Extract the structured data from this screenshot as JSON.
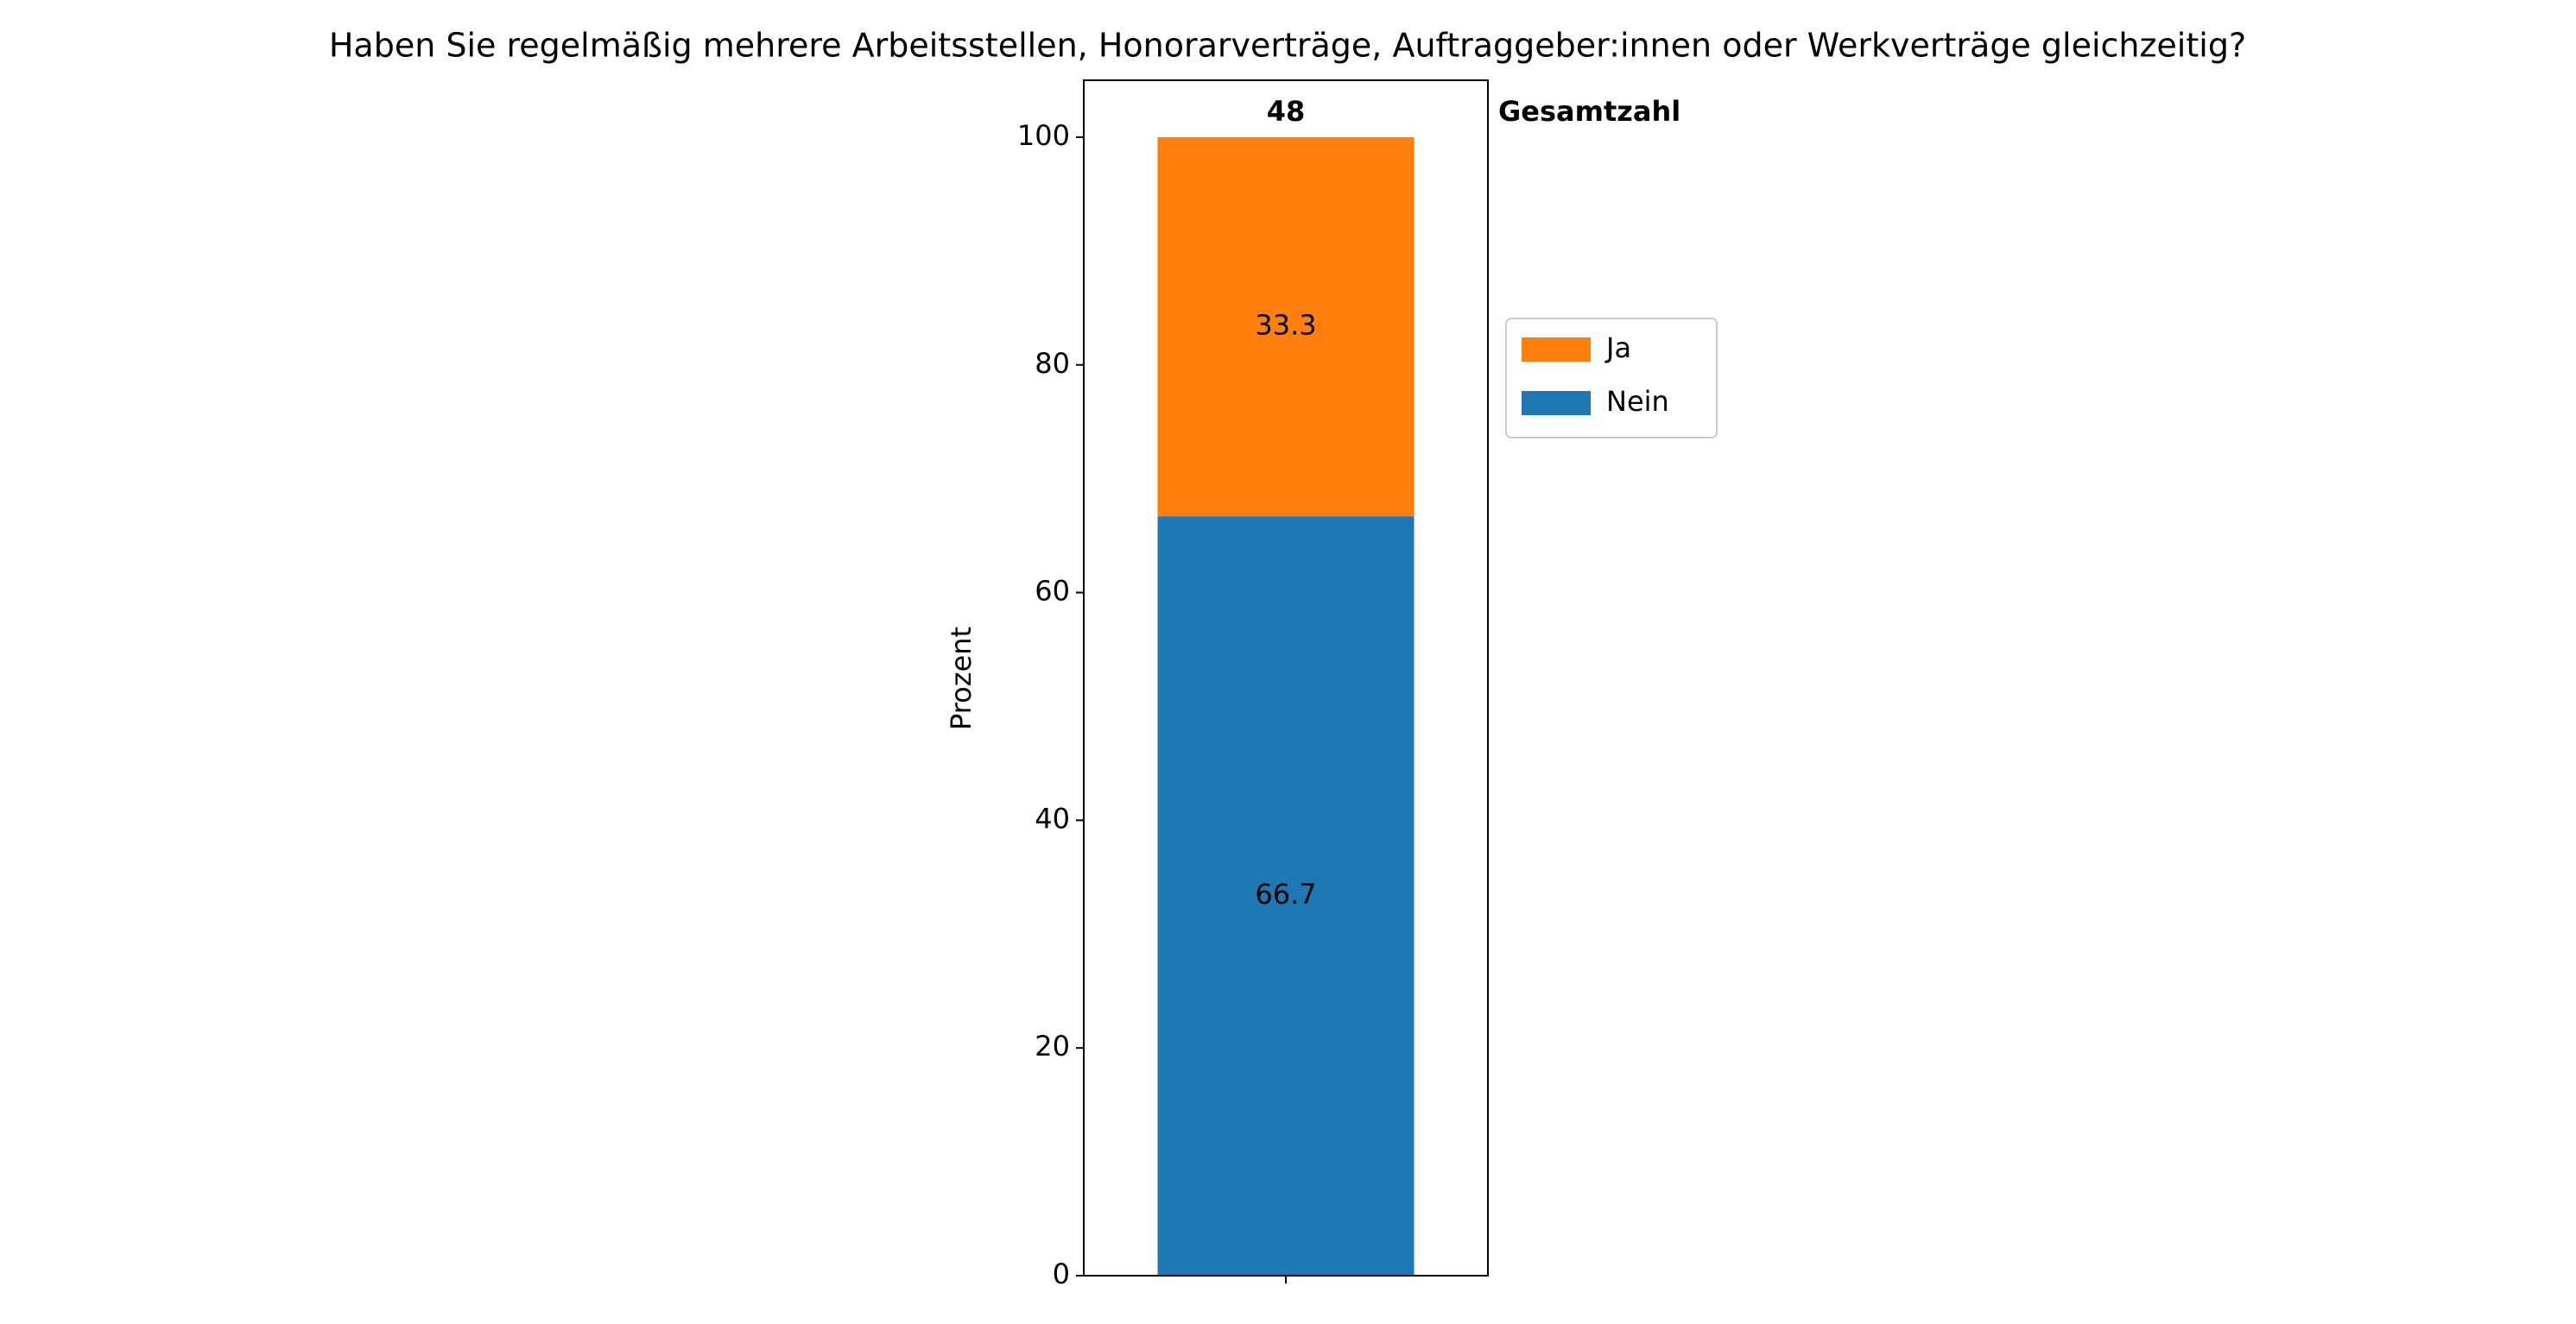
{
  "chart_data": {
    "type": "stacked_bar",
    "title": "Haben Sie regelmäßig mehrere Arbeitsstellen, Honorarverträge, Auftraggeber:innen oder Werkverträge gleichzeitig?",
    "ylabel": "Prozent",
    "categories": [
      null
    ],
    "series": [
      {
        "name": "Nein",
        "color": "#1f77b4",
        "values": [
          66.7
        ]
      },
      {
        "name": "Ja",
        "color": "#ff7f0e",
        "values": [
          33.3
        ]
      }
    ],
    "total": 48,
    "total_label": "Gesamtzahl",
    "ylim": [
      0,
      105
    ],
    "yticks": [
      0,
      20,
      40,
      60,
      80,
      100
    ],
    "legend": "right"
  }
}
